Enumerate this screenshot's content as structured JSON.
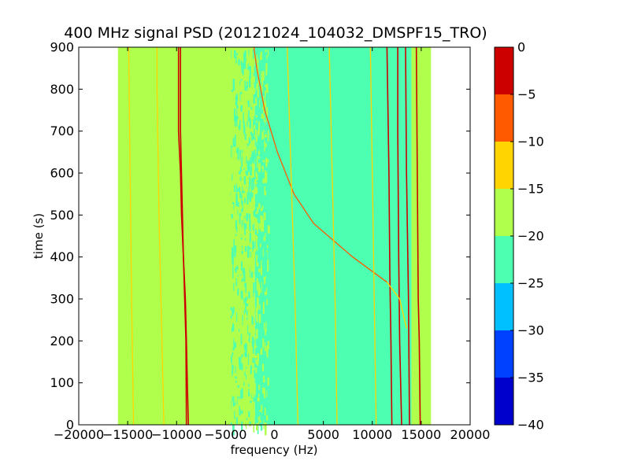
{
  "chart_data": {
    "type": "heatmap",
    "title": "400 MHz signal PSD (20121024_104032_DMSPF15_TRO)",
    "xlabel": "frequency (Hz)",
    "ylabel": "time (s)",
    "xlim": [
      -20000,
      20000
    ],
    "ylim": [
      0,
      900
    ],
    "xticks": [
      -20000,
      -15000,
      -10000,
      -5000,
      0,
      5000,
      10000,
      15000,
      20000
    ],
    "yticks": [
      0,
      100,
      200,
      300,
      400,
      500,
      600,
      700,
      800,
      900
    ],
    "data_extent_hz": [
      -16000,
      16000
    ],
    "colorbar": {
      "colormap": "jet",
      "min": -40,
      "max": 0,
      "ticks": [
        -40,
        -35,
        -30,
        -25,
        -20,
        -15,
        -10,
        -5,
        0
      ],
      "levels": [
        {
          "from": -40,
          "to": -35,
          "color": "#0000cd"
        },
        {
          "from": -35,
          "to": -30,
          "color": "#0040ff"
        },
        {
          "from": -30,
          "to": -25,
          "color": "#00c0ff"
        },
        {
          "from": -25,
          "to": -20,
          "color": "#4dffb0"
        },
        {
          "from": -20,
          "to": -15,
          "color": "#b0ff4d"
        },
        {
          "from": -15,
          "to": -10,
          "color": "#ffd400"
        },
        {
          "from": -10,
          "to": -5,
          "color": "#ff5a00"
        },
        {
          "from": -5,
          "to": 0,
          "color": "#cd0000"
        }
      ]
    },
    "background_regions": [
      {
        "from": -16000,
        "to": -2000,
        "level": "-20 to -15"
      },
      {
        "from": -2000,
        "to": 14000,
        "level": "-25 to -20"
      },
      {
        "from": 14000,
        "to": 16000,
        "level": "-20 to -15"
      }
    ],
    "signal_traces": [
      {
        "level": "-5 to 0",
        "points": [
          [
            -8800,
            0
          ],
          [
            -8900,
            100
          ],
          [
            -9000,
            200
          ],
          [
            -9100,
            300
          ],
          [
            -9300,
            400
          ],
          [
            -9500,
            500
          ],
          [
            -9600,
            600
          ],
          [
            -9800,
            700
          ],
          [
            -9800,
            800
          ],
          [
            -9800,
            900
          ]
        ]
      },
      {
        "level": "-5 to 0",
        "points": [
          [
            -9000,
            0
          ],
          [
            -9050,
            200
          ],
          [
            -9300,
            400
          ],
          [
            -9600,
            700
          ],
          [
            -9600,
            900
          ]
        ]
      },
      {
        "level": "-5 to 0",
        "points": [
          [
            14900,
            0
          ],
          [
            14800,
            200
          ],
          [
            14700,
            300
          ],
          [
            14600,
            600
          ],
          [
            14500,
            900
          ]
        ]
      },
      {
        "level": "-5 to 0",
        "points": [
          [
            13000,
            0
          ],
          [
            12800,
            200
          ],
          [
            12700,
            400
          ],
          [
            12600,
            700
          ],
          [
            12600,
            900
          ]
        ]
      },
      {
        "level": "-5 to 0",
        "points": [
          [
            12000,
            0
          ],
          [
            11900,
            200
          ],
          [
            11800,
            350
          ],
          [
            11700,
            600
          ],
          [
            11500,
            900
          ]
        ]
      },
      {
        "level": "-5 to 0",
        "points": [
          [
            13800,
            0
          ],
          [
            13700,
            300
          ],
          [
            13500,
            600
          ],
          [
            13400,
            900
          ]
        ]
      },
      {
        "level": "-10 to -5",
        "points": [
          [
            11500,
            340
          ],
          [
            8000,
            400
          ],
          [
            4000,
            480
          ],
          [
            2000,
            550
          ],
          [
            300,
            650
          ],
          [
            -1000,
            750
          ],
          [
            -1800,
            850
          ],
          [
            -2100,
            900
          ]
        ]
      },
      {
        "level": "-15 to -10",
        "points": [
          [
            13500,
            230
          ],
          [
            12800,
            300
          ],
          [
            11500,
            340
          ]
        ]
      },
      {
        "level": "-15 to -10",
        "points": [
          [
            -11300,
            0
          ],
          [
            -11500,
            200
          ],
          [
            -11800,
            500
          ],
          [
            -12000,
            800
          ],
          [
            -12000,
            900
          ]
        ]
      },
      {
        "level": "-15 to -10",
        "points": [
          [
            -14400,
            0
          ],
          [
            -14600,
            300
          ],
          [
            -14800,
            700
          ],
          [
            -14900,
            900
          ]
        ]
      },
      {
        "level": "-15 to -10",
        "points": [
          [
            2400,
            0
          ],
          [
            2100,
            300
          ],
          [
            1700,
            600
          ],
          [
            1300,
            900
          ]
        ]
      },
      {
        "level": "-15 to -10",
        "points": [
          [
            6400,
            0
          ],
          [
            6200,
            300
          ],
          [
            5900,
            600
          ],
          [
            5600,
            900
          ]
        ]
      },
      {
        "level": "-15 to -10",
        "points": [
          [
            10400,
            0
          ],
          [
            10200,
            300
          ],
          [
            10000,
            600
          ],
          [
            9800,
            900
          ]
        ]
      }
    ]
  }
}
